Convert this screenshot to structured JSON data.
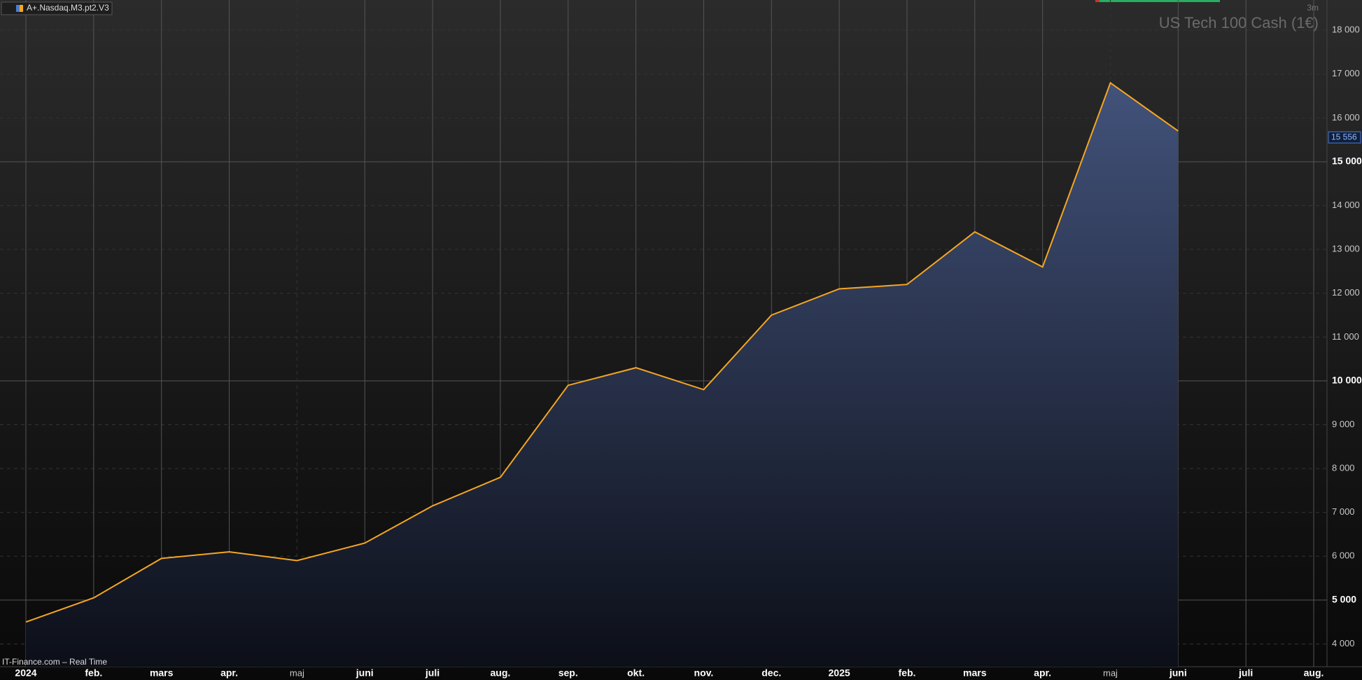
{
  "chart_data": {
    "type": "line",
    "title": "US Tech 100 Cash (1€)",
    "instrument": "A+.Nasdaq.M3.pt2.V3",
    "timeframe": "3m",
    "source": "IT-Finance.com – Real Time",
    "x": [
      "2024-01",
      "2024-02",
      "2024-03",
      "2024-04",
      "2024-05",
      "2024-06",
      "2024-07",
      "2024-08",
      "2024-09",
      "2024-10",
      "2024-11",
      "2024-12",
      "2025-01",
      "2025-02",
      "2025-03",
      "2025-04",
      "2025-05",
      "2025-06"
    ],
    "series": [
      {
        "name": "A+.Nasdaq.M3.pt2.V3",
        "color": "#f5a623",
        "values": [
          4500,
          5050,
          5950,
          6100,
          5900,
          6300,
          7150,
          7800,
          9900,
          10300,
          9800,
          11500,
          12100,
          12200,
          13400,
          12600,
          16800,
          15700
        ]
      }
    ],
    "last_price": {
      "value": 15556,
      "label": "15 556"
    },
    "xlim": [
      "2024-01",
      "2025-08"
    ],
    "xticks": [
      {
        "value": "2024-01",
        "label": "2024"
      },
      {
        "value": "2024-02",
        "label": "feb."
      },
      {
        "value": "2024-03",
        "label": "mars"
      },
      {
        "value": "2024-04",
        "label": "apr."
      },
      {
        "value": "2024-05",
        "label": "maj"
      },
      {
        "value": "2024-06",
        "label": "juni"
      },
      {
        "value": "2024-07",
        "label": "juli"
      },
      {
        "value": "2024-08",
        "label": "aug."
      },
      {
        "value": "2024-09",
        "label": "sep."
      },
      {
        "value": "2024-10",
        "label": "okt."
      },
      {
        "value": "2024-11",
        "label": "nov."
      },
      {
        "value": "2024-12",
        "label": "dec."
      },
      {
        "value": "2025-01",
        "label": "2025"
      },
      {
        "value": "2025-02",
        "label": "feb."
      },
      {
        "value": "2025-03",
        "label": "mars"
      },
      {
        "value": "2025-04",
        "label": "apr."
      },
      {
        "value": "2025-05",
        "label": "maj"
      },
      {
        "value": "2025-06",
        "label": "juni"
      },
      {
        "value": "2025-07",
        "label": "juli"
      },
      {
        "value": "2025-08",
        "label": "aug."
      }
    ],
    "ylim": [
      3480,
      18690
    ],
    "yticks": [
      {
        "value": 4000,
        "label": "4 000"
      },
      {
        "value": 5000,
        "label": "5 000"
      },
      {
        "value": 6000,
        "label": "6 000"
      },
      {
        "value": 7000,
        "label": "7 000"
      },
      {
        "value": 8000,
        "label": "8 000"
      },
      {
        "value": 9000,
        "label": "9 000"
      },
      {
        "value": 10000,
        "label": "10 000"
      },
      {
        "value": 11000,
        "label": "11 000"
      },
      {
        "value": 12000,
        "label": "12 000"
      },
      {
        "value": 13000,
        "label": "13 000"
      },
      {
        "value": 14000,
        "label": "14 000"
      },
      {
        "value": 15000,
        "label": "15 000"
      },
      {
        "value": 16000,
        "label": "16 000"
      },
      {
        "value": 17000,
        "label": "17 000"
      },
      {
        "value": 18000,
        "label": "18 000"
      }
    ],
    "grid": true
  }
}
